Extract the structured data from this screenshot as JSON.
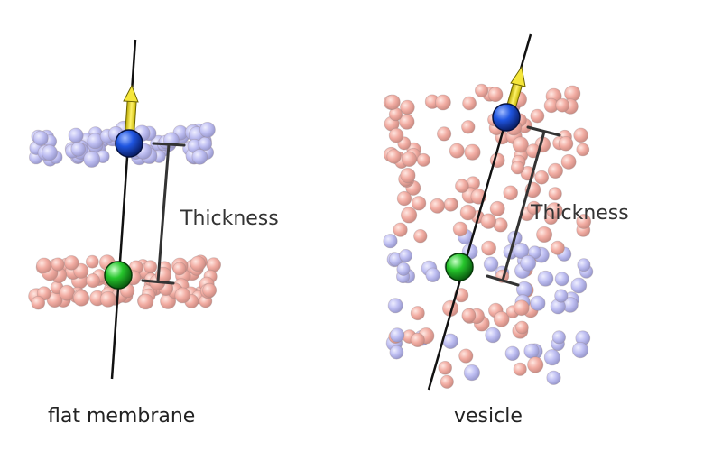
{
  "panels": [
    {
      "id": "flat",
      "caption": "flat membrane",
      "thickness_label": "Thickness"
    },
    {
      "id": "vesicle",
      "caption": "vesicle",
      "thickness_label": "Thickness"
    }
  ],
  "colors": {
    "lipid_red": "#e05a4a",
    "lipid_blue": "#7a7ae0",
    "head_blue": "#1a4fd6",
    "head_green": "#22c42a",
    "arrow_yellow": "#f2e224",
    "line": "#111111",
    "bracket": "#333333"
  }
}
